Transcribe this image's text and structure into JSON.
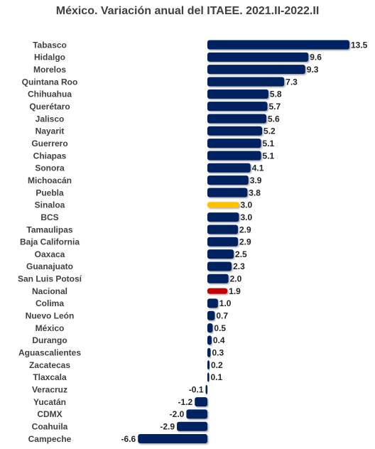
{
  "chart_data": {
    "type": "bar",
    "orientation": "horizontal",
    "title": "México. Variación anual del ITAEE. 2021.II-2022.II",
    "xlabel": "",
    "ylabel": "",
    "xlim": [
      -6.6,
      13.5
    ],
    "grid": false,
    "legend": "none",
    "categories": [
      "Tabasco",
      "Hidalgo",
      "Morelos",
      "Quintana Roo",
      "Chihuahua",
      "Querétaro",
      "Jalisco",
      "Nayarit",
      "Guerrero",
      "Chiapas",
      "Sonora",
      "Michoacán",
      "Puebla",
      "Sinaloa",
      "BCS",
      "Tamaulipas",
      "Baja California",
      "Oaxaca",
      "Guanajuato",
      "San Luis Potosí",
      "Nacional",
      "Colima",
      "Nuevo León",
      "México",
      "Durango",
      "Aguascalientes",
      "Zacatecas",
      "Tlaxcala",
      "Veracruz",
      "Yucatán",
      "CDMX",
      "Coahuila",
      "Campeche"
    ],
    "values": [
      13.5,
      9.6,
      9.3,
      7.3,
      5.8,
      5.7,
      5.6,
      5.2,
      5.1,
      5.1,
      4.1,
      3.9,
      3.8,
      3.0,
      3.0,
      2.9,
      2.9,
      2.5,
      2.3,
      2.0,
      1.9,
      1.0,
      0.7,
      0.5,
      0.4,
      0.3,
      0.2,
      0.1,
      -0.1,
      -1.2,
      -2.0,
      -2.9,
      -6.6
    ],
    "value_labels": [
      "13.5",
      "9.6",
      "9.3",
      "7.3",
      "5.8",
      "5.7",
      "5.6",
      "5.2",
      "5.1",
      "5.1",
      "4.1",
      "3.9",
      "3.8",
      "3.0",
      "3.0",
      "2.9",
      "2.9",
      "2.5",
      "2.3",
      "2.0",
      "1.9",
      "1.0",
      "0.7",
      "0.5",
      "0.4",
      "0.3",
      "0.2",
      "0.1",
      "-0.1",
      "-1.2",
      "-2.0",
      "-2.9",
      "-6.6"
    ],
    "colors": {
      "default": "#002060",
      "highlight": {
        "Sinaloa": "#FFC000",
        "Nacional": "#C00000"
      }
    }
  }
}
